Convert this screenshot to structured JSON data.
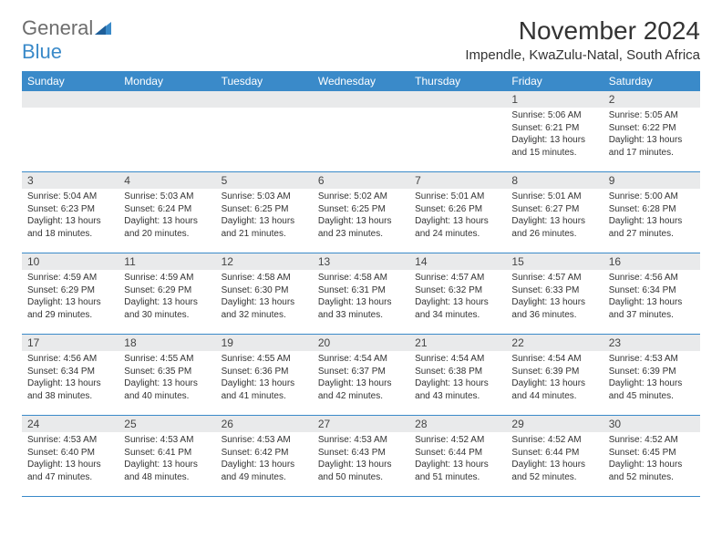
{
  "logo": {
    "part1": "General",
    "part2": "Blue"
  },
  "title": "November 2024",
  "location": "Impendle, KwaZulu-Natal, South Africa",
  "colors": {
    "header_bg": "#3a8ac9",
    "header_text": "#ffffff",
    "daynum_bg": "#e9eaeb",
    "week_border": "#3a8ac9",
    "logo_gray": "#6d6d6d",
    "logo_blue": "#3a8ac9"
  },
  "day_names": [
    "Sunday",
    "Monday",
    "Tuesday",
    "Wednesday",
    "Thursday",
    "Friday",
    "Saturday"
  ],
  "weeks": [
    [
      {
        "n": "",
        "sr": "",
        "ss": "",
        "dl": ""
      },
      {
        "n": "",
        "sr": "",
        "ss": "",
        "dl": ""
      },
      {
        "n": "",
        "sr": "",
        "ss": "",
        "dl": ""
      },
      {
        "n": "",
        "sr": "",
        "ss": "",
        "dl": ""
      },
      {
        "n": "",
        "sr": "",
        "ss": "",
        "dl": ""
      },
      {
        "n": "1",
        "sr": "Sunrise: 5:06 AM",
        "ss": "Sunset: 6:21 PM",
        "dl": "Daylight: 13 hours and 15 minutes."
      },
      {
        "n": "2",
        "sr": "Sunrise: 5:05 AM",
        "ss": "Sunset: 6:22 PM",
        "dl": "Daylight: 13 hours and 17 minutes."
      }
    ],
    [
      {
        "n": "3",
        "sr": "Sunrise: 5:04 AM",
        "ss": "Sunset: 6:23 PM",
        "dl": "Daylight: 13 hours and 18 minutes."
      },
      {
        "n": "4",
        "sr": "Sunrise: 5:03 AM",
        "ss": "Sunset: 6:24 PM",
        "dl": "Daylight: 13 hours and 20 minutes."
      },
      {
        "n": "5",
        "sr": "Sunrise: 5:03 AM",
        "ss": "Sunset: 6:25 PM",
        "dl": "Daylight: 13 hours and 21 minutes."
      },
      {
        "n": "6",
        "sr": "Sunrise: 5:02 AM",
        "ss": "Sunset: 6:25 PM",
        "dl": "Daylight: 13 hours and 23 minutes."
      },
      {
        "n": "7",
        "sr": "Sunrise: 5:01 AM",
        "ss": "Sunset: 6:26 PM",
        "dl": "Daylight: 13 hours and 24 minutes."
      },
      {
        "n": "8",
        "sr": "Sunrise: 5:01 AM",
        "ss": "Sunset: 6:27 PM",
        "dl": "Daylight: 13 hours and 26 minutes."
      },
      {
        "n": "9",
        "sr": "Sunrise: 5:00 AM",
        "ss": "Sunset: 6:28 PM",
        "dl": "Daylight: 13 hours and 27 minutes."
      }
    ],
    [
      {
        "n": "10",
        "sr": "Sunrise: 4:59 AM",
        "ss": "Sunset: 6:29 PM",
        "dl": "Daylight: 13 hours and 29 minutes."
      },
      {
        "n": "11",
        "sr": "Sunrise: 4:59 AM",
        "ss": "Sunset: 6:29 PM",
        "dl": "Daylight: 13 hours and 30 minutes."
      },
      {
        "n": "12",
        "sr": "Sunrise: 4:58 AM",
        "ss": "Sunset: 6:30 PM",
        "dl": "Daylight: 13 hours and 32 minutes."
      },
      {
        "n": "13",
        "sr": "Sunrise: 4:58 AM",
        "ss": "Sunset: 6:31 PM",
        "dl": "Daylight: 13 hours and 33 minutes."
      },
      {
        "n": "14",
        "sr": "Sunrise: 4:57 AM",
        "ss": "Sunset: 6:32 PM",
        "dl": "Daylight: 13 hours and 34 minutes."
      },
      {
        "n": "15",
        "sr": "Sunrise: 4:57 AM",
        "ss": "Sunset: 6:33 PM",
        "dl": "Daylight: 13 hours and 36 minutes."
      },
      {
        "n": "16",
        "sr": "Sunrise: 4:56 AM",
        "ss": "Sunset: 6:34 PM",
        "dl": "Daylight: 13 hours and 37 minutes."
      }
    ],
    [
      {
        "n": "17",
        "sr": "Sunrise: 4:56 AM",
        "ss": "Sunset: 6:34 PM",
        "dl": "Daylight: 13 hours and 38 minutes."
      },
      {
        "n": "18",
        "sr": "Sunrise: 4:55 AM",
        "ss": "Sunset: 6:35 PM",
        "dl": "Daylight: 13 hours and 40 minutes."
      },
      {
        "n": "19",
        "sr": "Sunrise: 4:55 AM",
        "ss": "Sunset: 6:36 PM",
        "dl": "Daylight: 13 hours and 41 minutes."
      },
      {
        "n": "20",
        "sr": "Sunrise: 4:54 AM",
        "ss": "Sunset: 6:37 PM",
        "dl": "Daylight: 13 hours and 42 minutes."
      },
      {
        "n": "21",
        "sr": "Sunrise: 4:54 AM",
        "ss": "Sunset: 6:38 PM",
        "dl": "Daylight: 13 hours and 43 minutes."
      },
      {
        "n": "22",
        "sr": "Sunrise: 4:54 AM",
        "ss": "Sunset: 6:39 PM",
        "dl": "Daylight: 13 hours and 44 minutes."
      },
      {
        "n": "23",
        "sr": "Sunrise: 4:53 AM",
        "ss": "Sunset: 6:39 PM",
        "dl": "Daylight: 13 hours and 45 minutes."
      }
    ],
    [
      {
        "n": "24",
        "sr": "Sunrise: 4:53 AM",
        "ss": "Sunset: 6:40 PM",
        "dl": "Daylight: 13 hours and 47 minutes."
      },
      {
        "n": "25",
        "sr": "Sunrise: 4:53 AM",
        "ss": "Sunset: 6:41 PM",
        "dl": "Daylight: 13 hours and 48 minutes."
      },
      {
        "n": "26",
        "sr": "Sunrise: 4:53 AM",
        "ss": "Sunset: 6:42 PM",
        "dl": "Daylight: 13 hours and 49 minutes."
      },
      {
        "n": "27",
        "sr": "Sunrise: 4:53 AM",
        "ss": "Sunset: 6:43 PM",
        "dl": "Daylight: 13 hours and 50 minutes."
      },
      {
        "n": "28",
        "sr": "Sunrise: 4:52 AM",
        "ss": "Sunset: 6:44 PM",
        "dl": "Daylight: 13 hours and 51 minutes."
      },
      {
        "n": "29",
        "sr": "Sunrise: 4:52 AM",
        "ss": "Sunset: 6:44 PM",
        "dl": "Daylight: 13 hours and 52 minutes."
      },
      {
        "n": "30",
        "sr": "Sunrise: 4:52 AM",
        "ss": "Sunset: 6:45 PM",
        "dl": "Daylight: 13 hours and 52 minutes."
      }
    ]
  ]
}
